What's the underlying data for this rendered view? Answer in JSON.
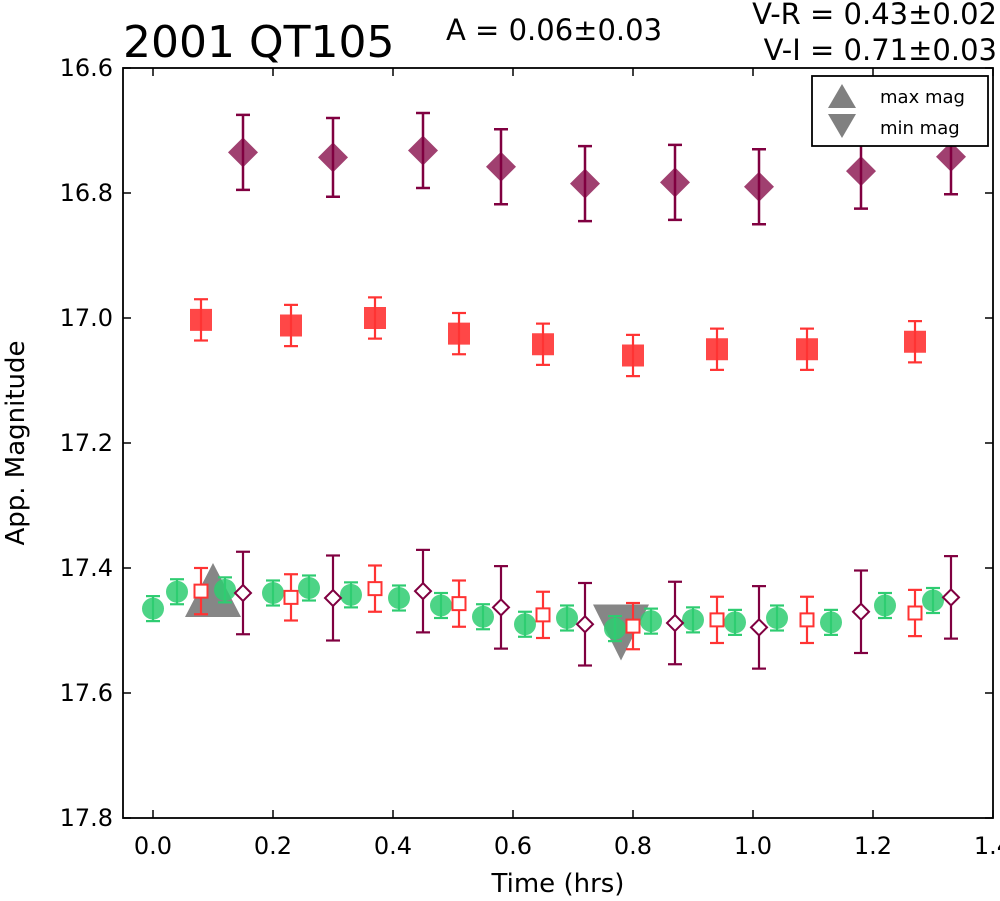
{
  "header": {
    "title": "2001 QT105",
    "amplitude": "A  = 0.06±0.03",
    "color_vr": "V-R = 0.43±0.02",
    "color_vi": "V-I  = 0.71±0.03"
  },
  "legend": {
    "position": "top-right",
    "entries": [
      {
        "label": "max mag",
        "marker": "triangle-up",
        "color": "#808080"
      },
      {
        "label": "min mag",
        "marker": "triangle-down",
        "color": "#808080"
      }
    ]
  },
  "chart_data": {
    "type": "scatter",
    "title": "2001 QT105",
    "xlabel": "Time (hrs)",
    "ylabel": "App. Magnitude",
    "xlim": [
      -0.05,
      1.4
    ],
    "ylim": [
      17.8,
      16.6
    ],
    "y_inverted": true,
    "x_ticks": [
      "0.0",
      "0.2",
      "0.4",
      "0.6",
      "0.8",
      "1.0",
      "1.2",
      "1.4"
    ],
    "y_ticks": [
      "16.6",
      "16.8",
      "17.0",
      "17.2",
      "17.4",
      "17.6",
      "17.8"
    ],
    "grid": false,
    "series": [
      {
        "color": "#800040",
        "marker": "diamond",
        "filled": true,
        "x": [
          0.15,
          0.3,
          0.45,
          0.58,
          0.72,
          0.87,
          1.01,
          1.18,
          1.33
        ],
        "y": [
          16.735,
          16.743,
          16.732,
          16.758,
          16.785,
          16.783,
          16.79,
          16.765,
          16.742
        ],
        "err": [
          0.06,
          0.063,
          0.06,
          0.06,
          0.06,
          0.06,
          0.06,
          0.06,
          0.06
        ]
      },
      {
        "color": "#ff3333",
        "marker": "square",
        "filled": true,
        "x": [
          0.08,
          0.23,
          0.37,
          0.51,
          0.65,
          0.8,
          0.94,
          1.09,
          1.27
        ],
        "y": [
          17.003,
          17.012,
          17.0,
          17.025,
          17.042,
          17.06,
          17.05,
          17.05,
          17.038
        ],
        "err": [
          0.033,
          0.033,
          0.033,
          0.033,
          0.033,
          0.033,
          0.033,
          0.033,
          0.033
        ]
      },
      {
        "color": "#2ecc71",
        "marker": "circle",
        "filled": true,
        "x": [
          0.0,
          0.04,
          0.12,
          0.2,
          0.26,
          0.33,
          0.41,
          0.48,
          0.55,
          0.62,
          0.69,
          0.77,
          0.83,
          0.9,
          0.97,
          1.04,
          1.13,
          1.22,
          1.3
        ],
        "y": [
          17.465,
          17.438,
          17.435,
          17.44,
          17.432,
          17.443,
          17.448,
          17.46,
          17.478,
          17.49,
          17.48,
          17.497,
          17.485,
          17.483,
          17.487,
          17.48,
          17.487,
          17.46,
          17.452
        ],
        "err": [
          0.02,
          0.02,
          0.02,
          0.02,
          0.02,
          0.02,
          0.02,
          0.02,
          0.02,
          0.02,
          0.02,
          0.02,
          0.02,
          0.02,
          0.02,
          0.02,
          0.02,
          0.02,
          0.02
        ]
      },
      {
        "color": "#ff3333",
        "marker": "square",
        "filled": false,
        "x": [
          0.08,
          0.23,
          0.37,
          0.51,
          0.65,
          0.8,
          0.94,
          1.09,
          1.27
        ],
        "y": [
          17.437,
          17.447,
          17.433,
          17.457,
          17.475,
          17.493,
          17.483,
          17.483,
          17.472
        ],
        "err": [
          0.037,
          0.037,
          0.037,
          0.037,
          0.037,
          0.037,
          0.037,
          0.037,
          0.037
        ]
      },
      {
        "color": "#800040",
        "marker": "diamond",
        "filled": false,
        "x": [
          0.15,
          0.3,
          0.45,
          0.58,
          0.72,
          0.87,
          1.01,
          1.18,
          1.33
        ],
        "y": [
          17.44,
          17.448,
          17.437,
          17.463,
          17.49,
          17.488,
          17.495,
          17.47,
          17.447
        ],
        "err": [
          0.066,
          0.068,
          0.066,
          0.066,
          0.066,
          0.066,
          0.066,
          0.066,
          0.066
        ]
      }
    ],
    "annotations": [
      {
        "label": "max mag",
        "marker": "triangle-up",
        "x": 0.1,
        "y": 17.44
      },
      {
        "label": "min mag",
        "marker": "triangle-down",
        "x": 0.78,
        "y": 17.5
      }
    ]
  }
}
